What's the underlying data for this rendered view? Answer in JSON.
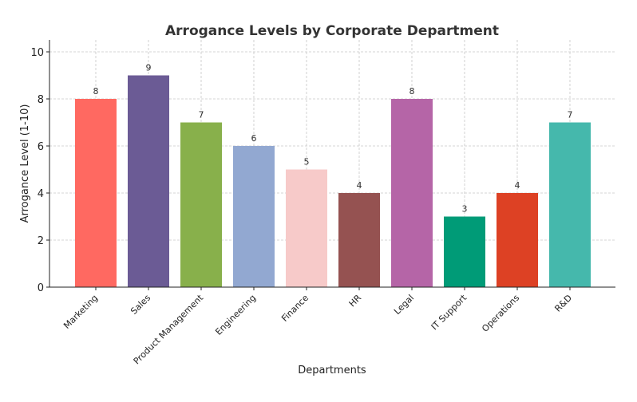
{
  "chart_data": {
    "type": "bar",
    "title": "Arrogance Levels by Corporate Department",
    "xlabel": "Departments",
    "ylabel": "Arrogance Level (1-10)",
    "ylim": [
      0,
      10.5
    ],
    "yticks": [
      0,
      2,
      4,
      6,
      8,
      10
    ],
    "grid": true,
    "categories": [
      "Marketing",
      "Sales",
      "Product Management",
      "Engineering",
      "Finance",
      "HR",
      "Legal",
      "IT Support",
      "Operations",
      "R&D"
    ],
    "values": [
      8,
      9,
      7,
      6,
      5,
      4,
      8,
      3,
      4,
      7
    ],
    "colors": [
      "#FF6961",
      "#6B5B95",
      "#88B04B",
      "#92A8D1",
      "#F7CAC9",
      "#955251",
      "#B565A7",
      "#009B77",
      "#DD4124",
      "#45B8AC"
    ],
    "data_labels": true
  }
}
